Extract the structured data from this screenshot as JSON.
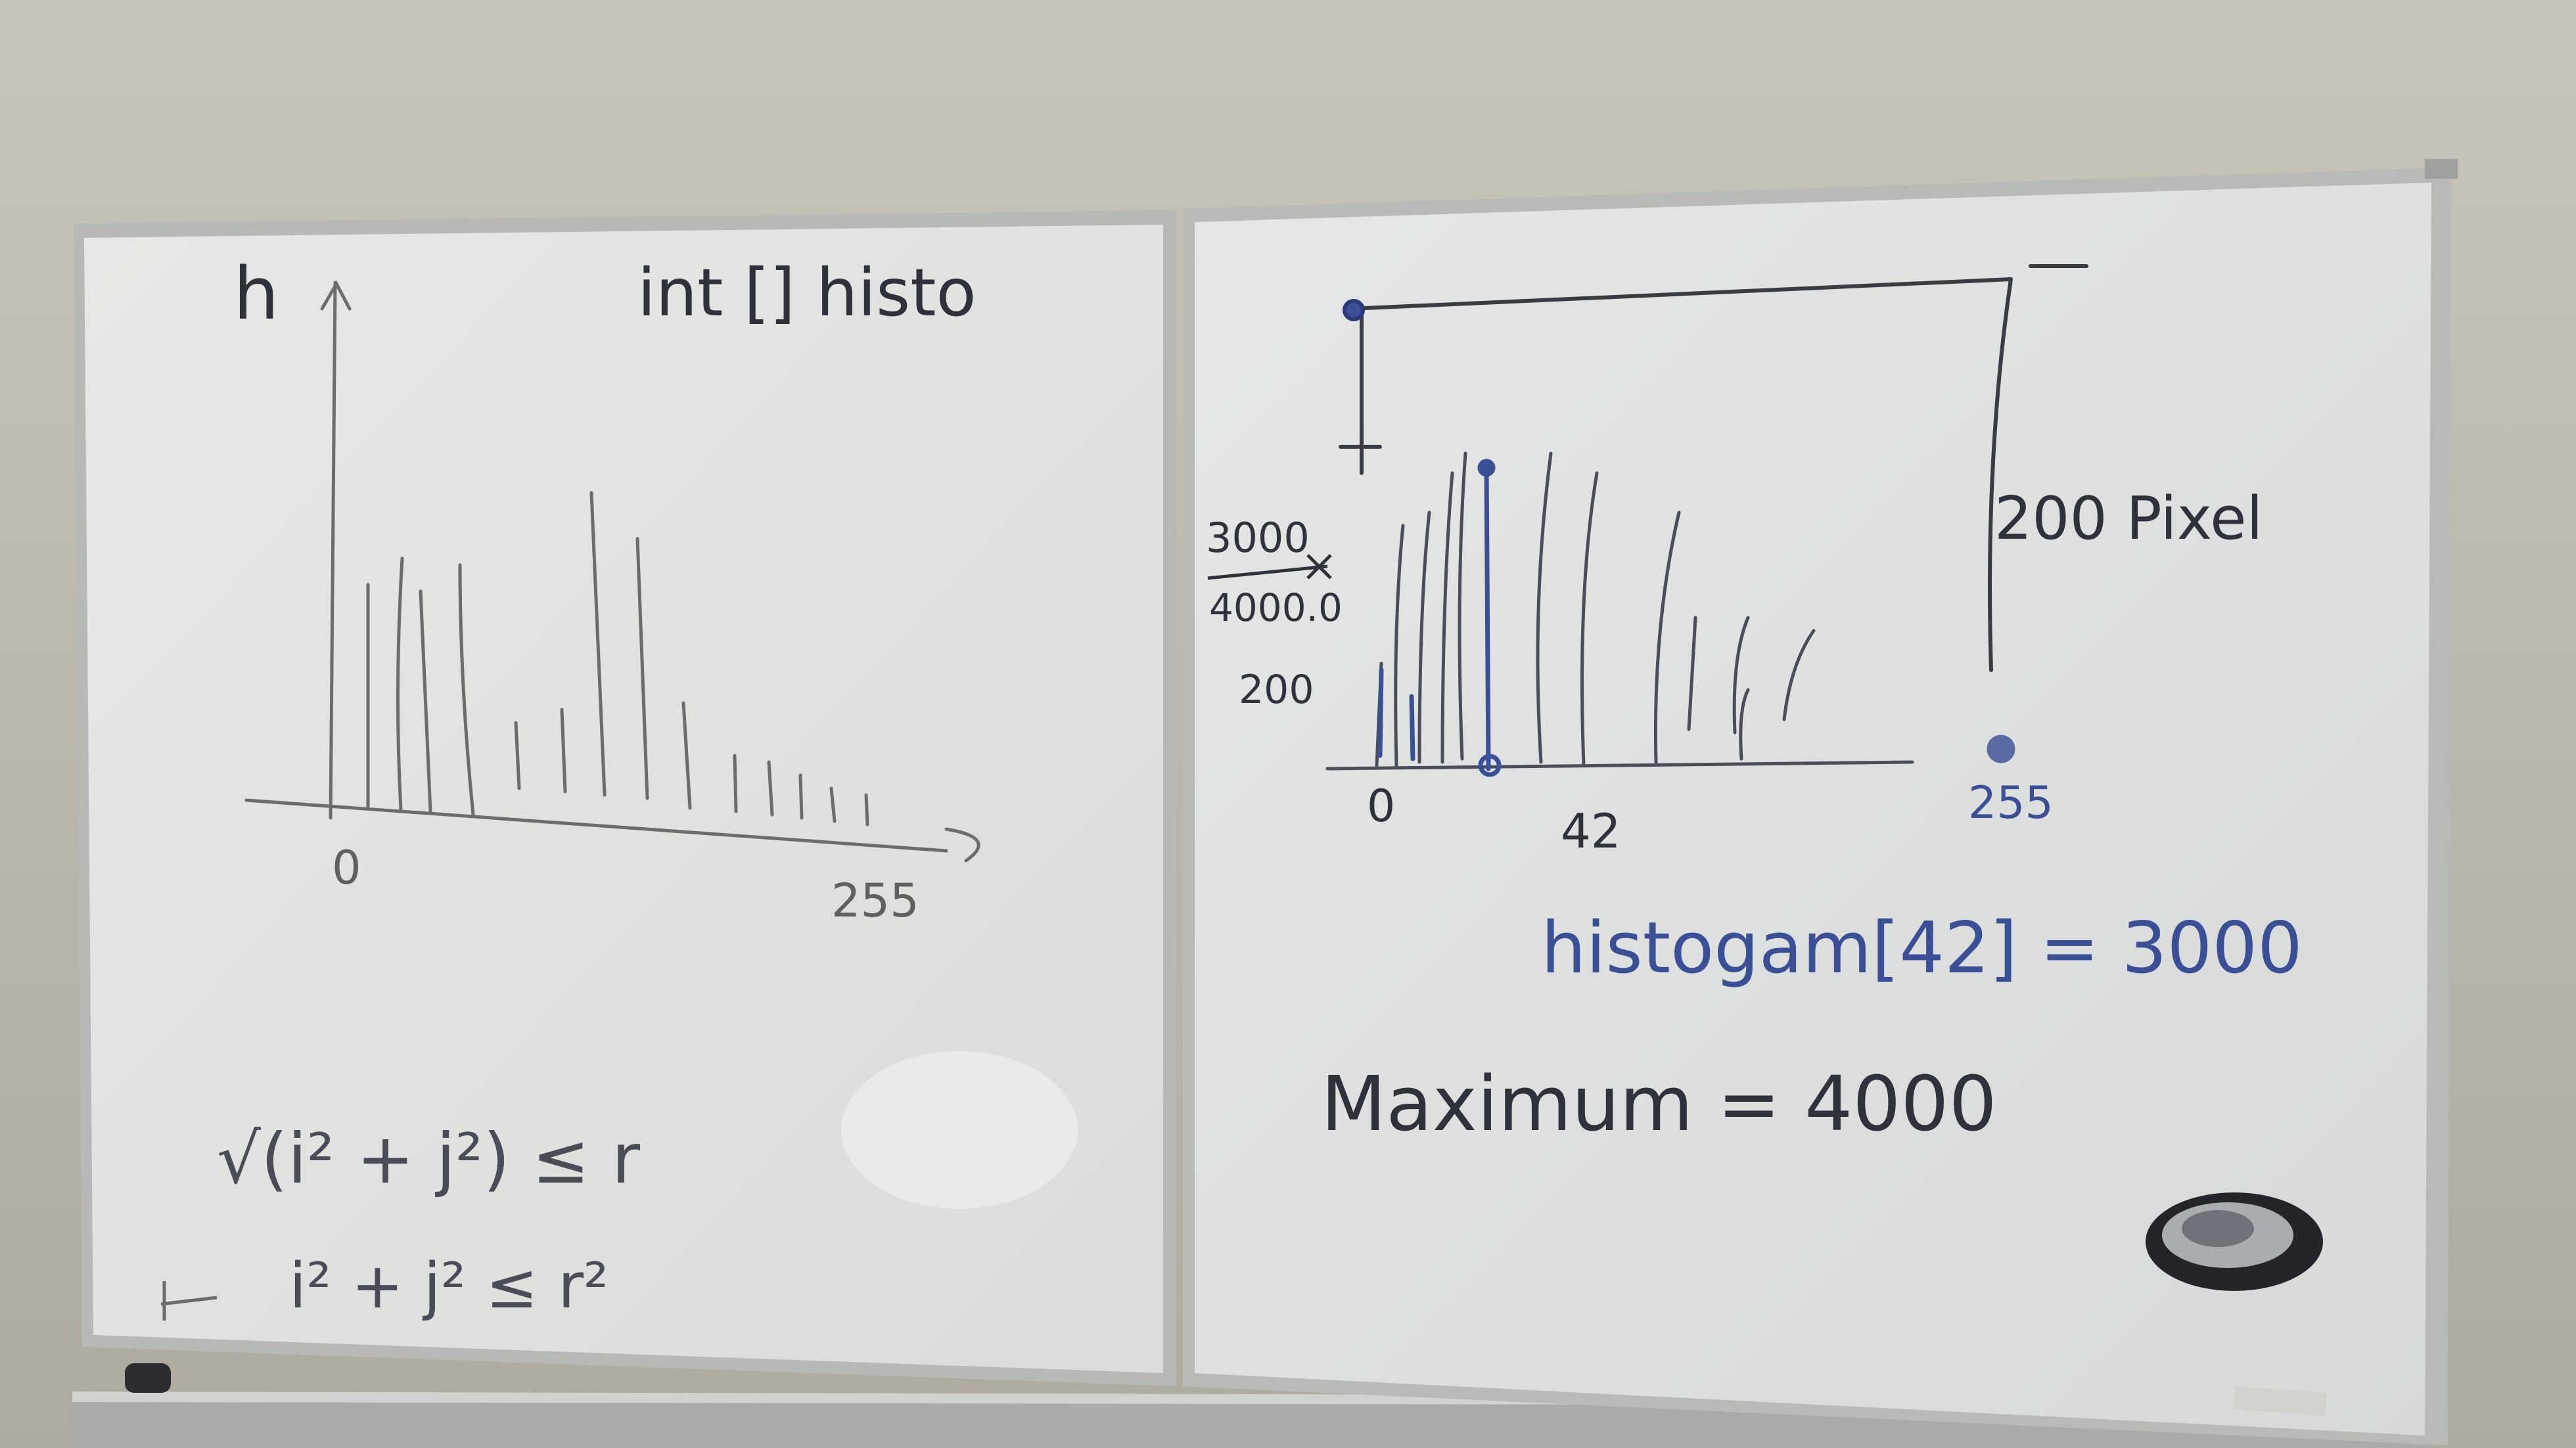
{
  "colors": {
    "wall": "#bdb9ab",
    "board": "#e3e6e3",
    "frame": "#b9bbba",
    "ink_black": "#2d2f36",
    "ink_blue": "#3a4f96",
    "ink_grey": "#6e7170"
  },
  "left_board": {
    "axis_h_label": "h",
    "title": "int [] histo",
    "x_min_label": "0",
    "x_max_label": "255",
    "formula_1": "√(i² + j²) ≤ r",
    "formula_2": "i² + j² ≤ r²"
  },
  "right_board": {
    "label_3000": "3000",
    "label_4000": "4000.0",
    "label_200_y": "200",
    "label_200_pixel": "200 Pixel",
    "x_min_label": "0",
    "x_mid_label": "42",
    "x_max_label": "255",
    "histogram_eq": "histogam[42] = 3000",
    "maximum_eq": "Maximum = 4000"
  },
  "eraser": {
    "icon": "whiteboard-eraser-icon"
  }
}
